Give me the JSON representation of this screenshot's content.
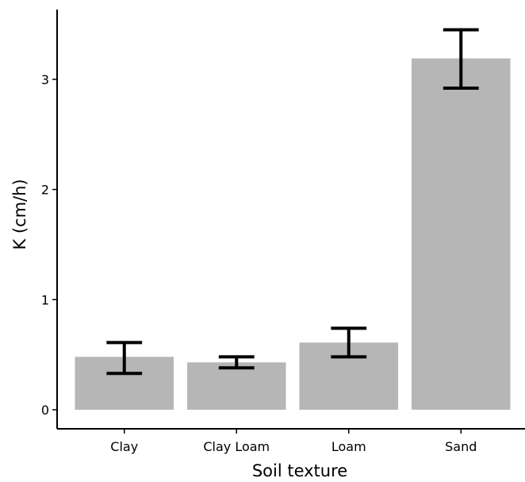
{
  "chart_data": {
    "type": "bar",
    "title": "",
    "xlabel": "Soil texture",
    "ylabel": "K (cm/h)",
    "categories": [
      "Clay",
      "Clay Loam",
      "Loam",
      "Sand"
    ],
    "values": [
      0.48,
      0.43,
      0.61,
      3.19
    ],
    "error_bars": [
      {
        "low": 0.33,
        "high": 0.61
      },
      {
        "low": 0.38,
        "high": 0.48
      },
      {
        "low": 0.48,
        "high": 0.74
      },
      {
        "low": 2.92,
        "high": 3.45
      }
    ],
    "ylim": [
      -0.08,
      3.6
    ],
    "yticks": [
      0,
      1,
      2,
      3
    ],
    "grid": false,
    "legend": "none",
    "colors": {
      "bar": "#b6b6b6",
      "error_bar": "#000000",
      "axis": "#000000"
    }
  }
}
